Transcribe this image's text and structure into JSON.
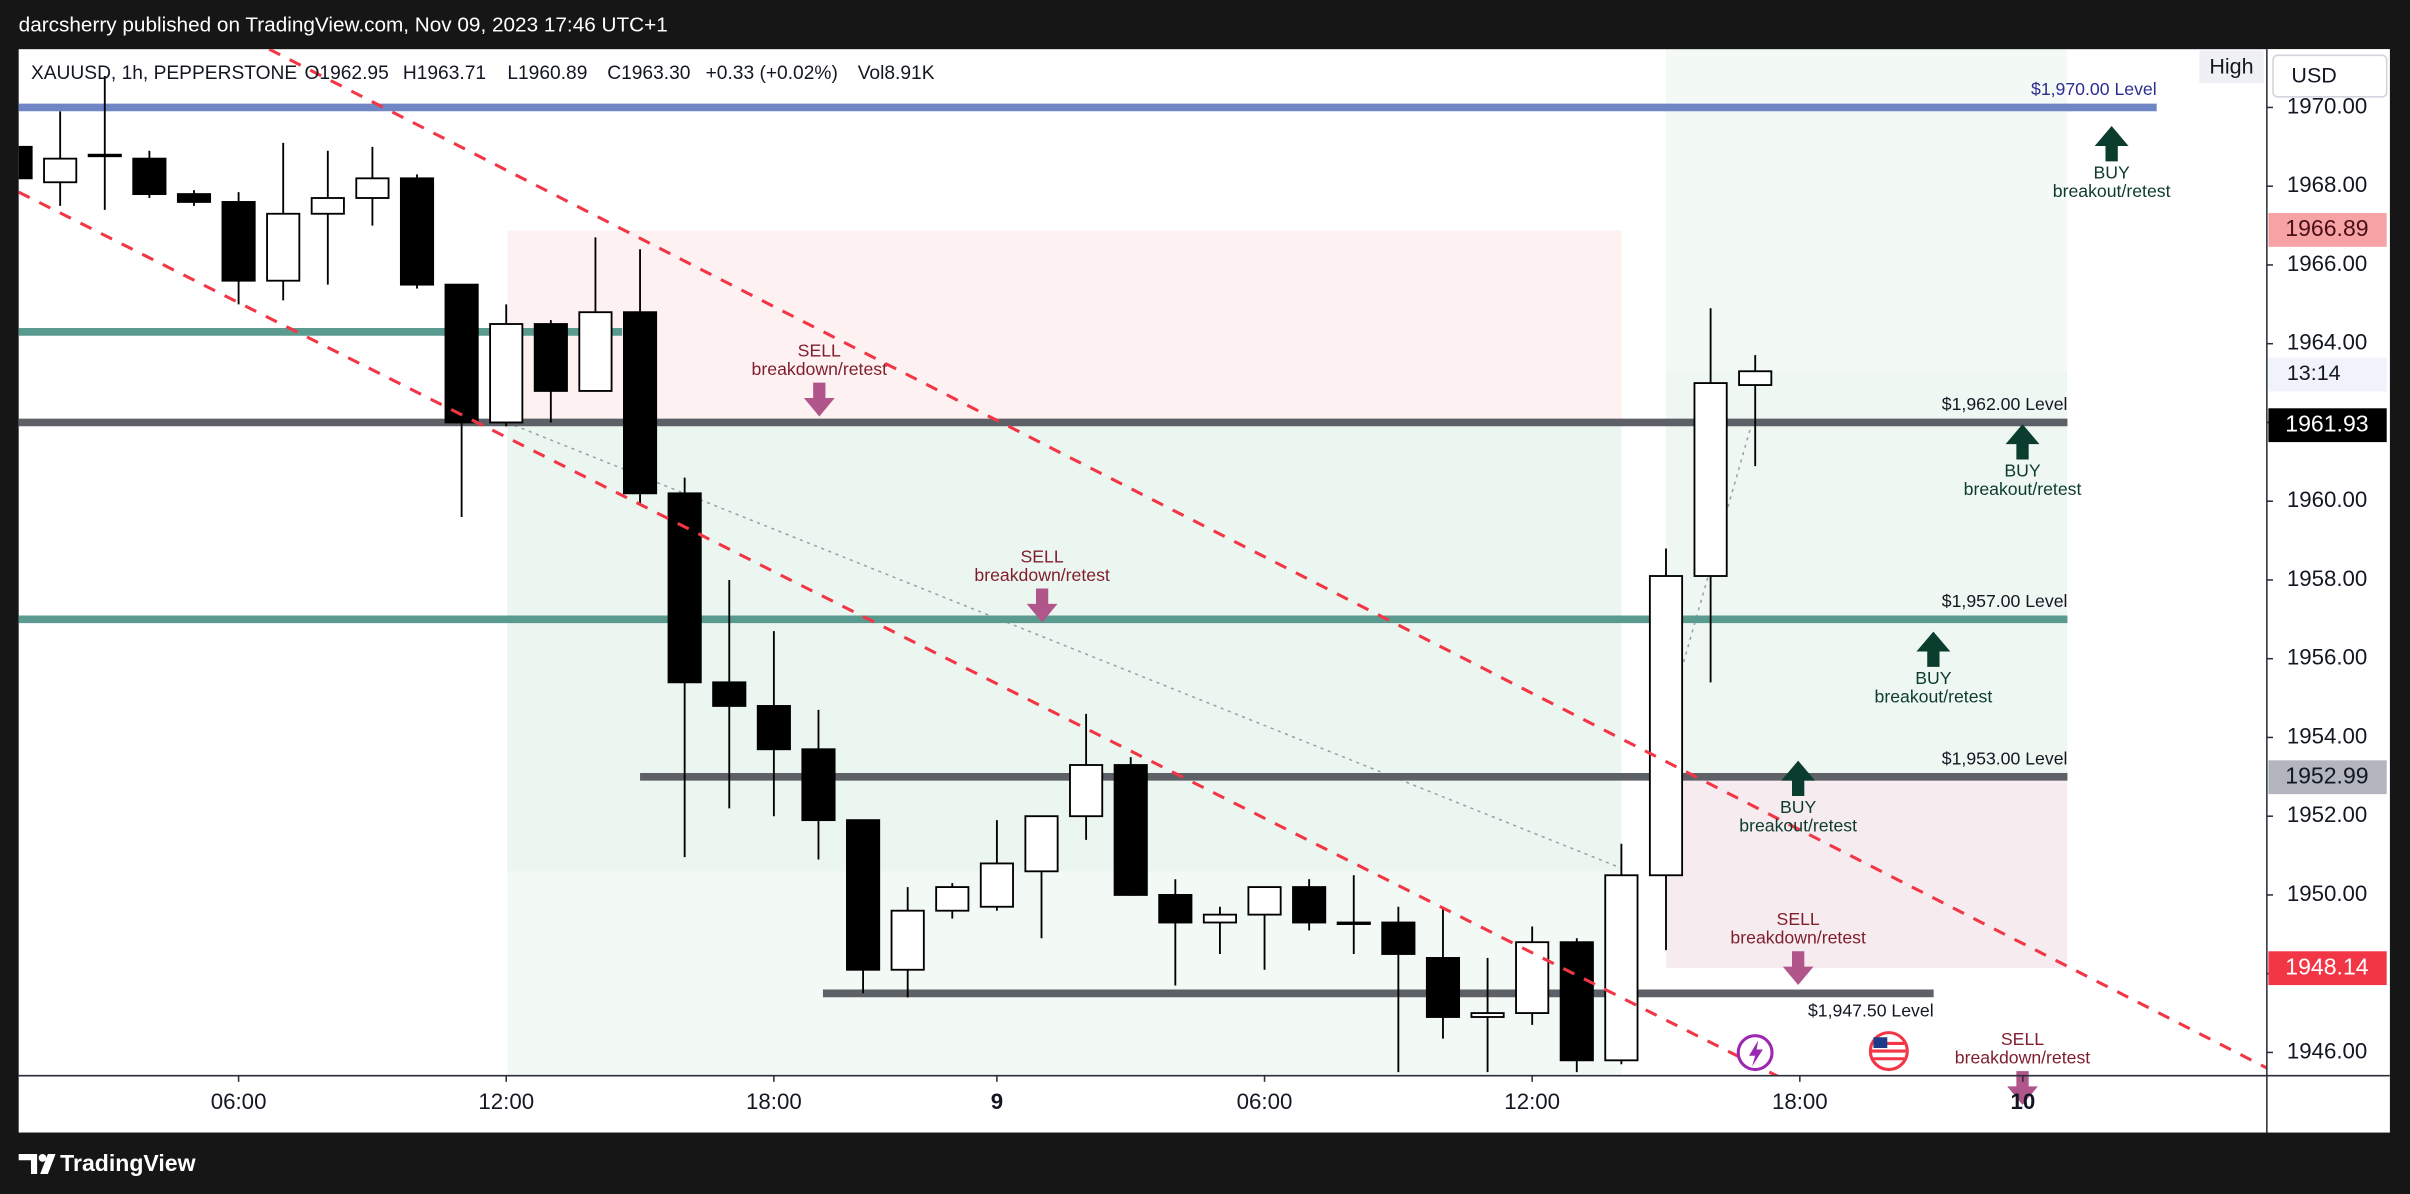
{
  "header": {
    "publisher": "darcsherry published on TradingView.com, Nov 09, 2023 17:46 UTC+1"
  },
  "footer": {
    "brand": "TradingView"
  },
  "chart_data": {
    "type": "candlestick",
    "legend": {
      "symbol": "XAUUSD, 1h, PEPPERSTONE",
      "open": "O1962.95",
      "high": "H1963.71",
      "low": "L1960.89",
      "close": "C1963.30",
      "change": "+0.33 (+0.02%)",
      "volume": "Vol8.91K"
    },
    "currency": "USD",
    "high_label": "High",
    "x": [
      0,
      1,
      2,
      3,
      4,
      5,
      6,
      7,
      8,
      9,
      10,
      11,
      12,
      13,
      14,
      15,
      16,
      17,
      18,
      19,
      20,
      21,
      22,
      23,
      24,
      25,
      26,
      27,
      28,
      29,
      30,
      31,
      32,
      33,
      34,
      35,
      36,
      37,
      38,
      39
    ],
    "open": [
      1969.0,
      1968.1,
      1968.8,
      1968.7,
      1967.8,
      1967.6,
      1965.6,
      1967.3,
      1967.7,
      1968.2,
      1965.5,
      1962.0,
      1964.5,
      1962.8,
      1964.8,
      1960.2,
      1955.4,
      1954.8,
      1953.7,
      1951.9,
      1948.1,
      1949.6,
      1949.7,
      1950.6,
      1952.0,
      1953.3,
      1950.0,
      1949.3,
      1949.5,
      1950.2,
      1949.3,
      1949.3,
      1948.4,
      1946.9,
      1947.0,
      1948.8,
      1945.8,
      1950.5,
      1958.1,
      1962.95
    ],
    "high": [
      1969.3,
      1969.9,
      1970.8,
      1968.9,
      1967.9,
      1967.85,
      1969.1,
      1968.9,
      1969.0,
      1968.3,
      1965.5,
      1965.0,
      1964.6,
      1966.7,
      1966.4,
      1960.6,
      1958.0,
      1956.7,
      1954.7,
      1951.9,
      1950.2,
      1950.3,
      1951.9,
      1952.0,
      1954.6,
      1953.5,
      1950.4,
      1949.7,
      1950.2,
      1950.4,
      1950.5,
      1949.7,
      1949.7,
      1948.4,
      1949.2,
      1948.9,
      1951.3,
      1958.8,
      1964.9,
      1963.71
    ],
    "low": [
      1968.2,
      1967.5,
      1967.4,
      1967.7,
      1967.5,
      1965.0,
      1965.1,
      1965.5,
      1967.0,
      1965.4,
      1959.6,
      1961.9,
      1962.0,
      1962.8,
      1959.9,
      1950.96,
      1952.2,
      1952.0,
      1950.9,
      1947.5,
      1947.4,
      1949.4,
      1949.6,
      1948.9,
      1951.4,
      1949.98,
      1947.7,
      1948.5,
      1948.1,
      1949.1,
      1948.5,
      1945.5,
      1946.35,
      1945.5,
      1946.7,
      1945.5,
      1945.7,
      1948.6,
      1955.4,
      1960.89
    ],
    "close": [
      1968.2,
      1968.7,
      1968.8,
      1967.8,
      1967.6,
      1965.6,
      1967.3,
      1967.7,
      1968.2,
      1965.5,
      1962.0,
      1964.5,
      1962.8,
      1964.8,
      1960.2,
      1955.4,
      1954.8,
      1953.7,
      1951.9,
      1948.1,
      1949.6,
      1950.2,
      1950.8,
      1952.0,
      1953.3,
      1950.0,
      1949.3,
      1949.5,
      1950.2,
      1949.3,
      1949.3,
      1948.5,
      1946.9,
      1947.0,
      1948.8,
      1945.8,
      1950.5,
      1958.1,
      1963.0,
      1963.3
    ],
    "up_color": "#ffffff",
    "down_color": "#000000",
    "xlim": [
      0.07,
      50.47
    ],
    "xticks": [
      {
        "value": 5,
        "label": "06:00"
      },
      {
        "value": 11,
        "label": "12:00"
      },
      {
        "value": 17,
        "label": "18:00"
      },
      {
        "value": 22,
        "label": "9"
      },
      {
        "value": 28,
        "label": "06:00"
      },
      {
        "value": 34,
        "label": "12:00"
      },
      {
        "value": 40,
        "label": "18:00"
      },
      {
        "value": 45,
        "label": "10"
      }
    ],
    "ylim": [
      1945.41,
      1971.48
    ],
    "yticks": [
      {
        "value": 1946,
        "label": "1946.00"
      },
      {
        "value": 1948,
        "label": "1948.00"
      },
      {
        "value": 1950,
        "label": "1950.00"
      },
      {
        "value": 1952,
        "label": "1952.00"
      },
      {
        "value": 1954,
        "label": "1954.00"
      },
      {
        "value": 1956,
        "label": "1956.00"
      },
      {
        "value": 1958,
        "label": "1958.00"
      },
      {
        "value": 1960,
        "label": "1960.00"
      },
      {
        "value": 1962,
        "label": "1962.00"
      },
      {
        "value": 1964,
        "label": "1964.00"
      },
      {
        "value": 1966,
        "label": "1966.00"
      },
      {
        "value": 1968,
        "label": "1968.00"
      },
      {
        "value": 1970,
        "label": "1970.00"
      }
    ],
    "grid": false,
    "levels": [
      {
        "price": 1970,
        "label": "$1,970.00 Level",
        "color": "#7086c4",
        "from": 0.07,
        "to": 48.0
      },
      {
        "price": 1964.3,
        "color": "#5b9b8f",
        "from": 0.07,
        "to": 13.6
      },
      {
        "price": 1962,
        "label": "$1,962.00 Level",
        "color": "#5d6066",
        "from": 0.07,
        "to": 46.0
      },
      {
        "price": 1957,
        "label": "$1,957.00 Level",
        "color": "#5b9b8f",
        "from": 0.07,
        "to": 46.0
      },
      {
        "price": 1953,
        "label": "$1,953.00 Level",
        "color": "#5d6066",
        "from": 14.0,
        "to": 46.0
      },
      {
        "price": 1947.5,
        "label": "$1,947.50 Level",
        "color": "#5d6066",
        "from": 18.1,
        "to": 43.0,
        "label_position": "below"
      }
    ],
    "price_labels": [
      {
        "value": 1966.89,
        "color": "#f7a3a6",
        "text_color": "#4a1014"
      },
      {
        "value": 1961.93,
        "color": "#000000",
        "text_color": "#ffffff"
      },
      {
        "value": 1952.99,
        "color": "#b2b5be",
        "text_color": "#131722"
      },
      {
        "value": 1948.14,
        "color": "#f23645",
        "text_color": "#ffffff"
      }
    ],
    "countdown": "13:14",
    "annotations": [
      {
        "lines": [
          "SELL",
          "breakdown/retest"
        ],
        "color": "#7f1d2d",
        "arrow_color": "#b0568a"
      },
      {
        "lines": [
          "SELL",
          "breakdown/retest"
        ],
        "color": "#7f1d2d",
        "arrow_color": "#b0568a"
      },
      {
        "lines": [
          "SELL",
          "breakdown/retest"
        ],
        "color": "#7f1d2d",
        "arrow_color": "#b0568a"
      },
      {
        "lines": [
          "SELL",
          "breakdown/retest"
        ],
        "color": "#7f1d2d",
        "arrow_color": "#b0568a"
      },
      {
        "lines": [
          "BUY",
          "breakout/retest"
        ],
        "color": "#0d3b2e",
        "arrow_color": "#0b3d2f"
      },
      {
        "lines": [
          "BUY",
          "breakout/retest"
        ],
        "color": "#0d3b2e",
        "arrow_color": "#0b3d2f"
      },
      {
        "lines": [
          "BUY",
          "breakout/retest"
        ],
        "color": "#0d3b2e",
        "arrow_color": "#0b3d2f"
      },
      {
        "lines": [
          "BUY",
          "breakout/retest"
        ],
        "color": "#0d3b2e",
        "arrow_color": "#0b3d2f"
      }
    ]
  }
}
